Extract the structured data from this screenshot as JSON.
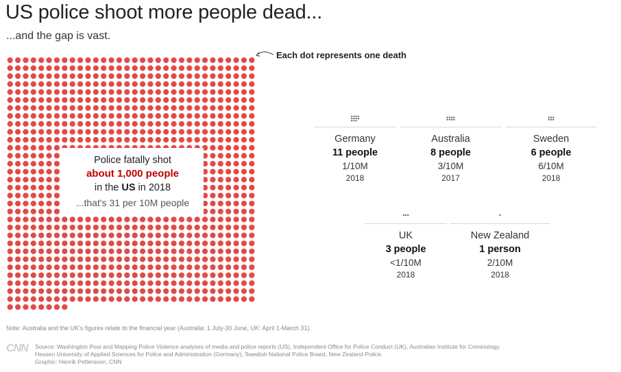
{
  "title": "US police shoot more people dead...",
  "subtitle": "...and the gap is vast.",
  "legend": "Each dot represents one death",
  "colors": {
    "dot": "#e24a4a",
    "accent": "#c00000",
    "small_dot": "#555555"
  },
  "us_callout": {
    "line1": "Police fatally shot",
    "line2": "about 1,000 people",
    "line3_prefix": "in the ",
    "line3_country": "US",
    "line3_suffix": " in 2018",
    "line4": "...that's 31 per 10M people"
  },
  "chart_data": {
    "type": "dot-matrix",
    "unit": "Each dot represents one death",
    "series": [
      {
        "name": "US",
        "deaths": 1000,
        "deaths_label": "about 1,000 people",
        "rate_per_10M": 31,
        "year": "2018"
      },
      {
        "name": "Germany",
        "deaths": 11,
        "deaths_label": "11 people",
        "rate_label": "1/10M",
        "year": "2018"
      },
      {
        "name": "Australia",
        "deaths": 8,
        "deaths_label": "8 people",
        "rate_label": "3/10M",
        "year": "2017"
      },
      {
        "name": "Sweden",
        "deaths": 6,
        "deaths_label": "6 people",
        "rate_label": "6/10M",
        "year": "2018"
      },
      {
        "name": "UK",
        "deaths": 3,
        "deaths_label": "3 people",
        "rate_label": "<1/10M",
        "year": "2018"
      },
      {
        "name": "New Zealand",
        "deaths": 1,
        "deaths_label": "1 person",
        "rate_label": "2/10M",
        "year": "2018"
      }
    ]
  },
  "countries": [
    {
      "name": "Germany",
      "count": "11 people",
      "rate": "1/10M",
      "year": "2018"
    },
    {
      "name": "Australia",
      "count": "8 people",
      "rate": "3/10M",
      "year": "2017"
    },
    {
      "name": "Sweden",
      "count": "6 people",
      "rate": "6/10M",
      "year": "2018"
    },
    {
      "name": "UK",
      "count": "3 people",
      "rate": "<1/10M",
      "year": "2018"
    },
    {
      "name": "New Zealand",
      "count": "1 person",
      "rate": "2/10M",
      "year": "2018"
    }
  ],
  "note": "Note: Australia and the UK's figures relate to the financial year (Australia: 1 July-30 June, UK: April 1-March 31).",
  "logo": "CNN",
  "source_lines": [
    "Source: Washington Post and Mapping Police Violence analyses of media and police reports (US), Independent Office for Police Conduct (UK), Australian Institute for Criminology,",
    "Hessen University of Applied Sciences for Police and Administration (Germany), Swedish National Police Board, New Zealand Police.",
    "Graphic: Henrik Pettersson, CNN"
  ]
}
